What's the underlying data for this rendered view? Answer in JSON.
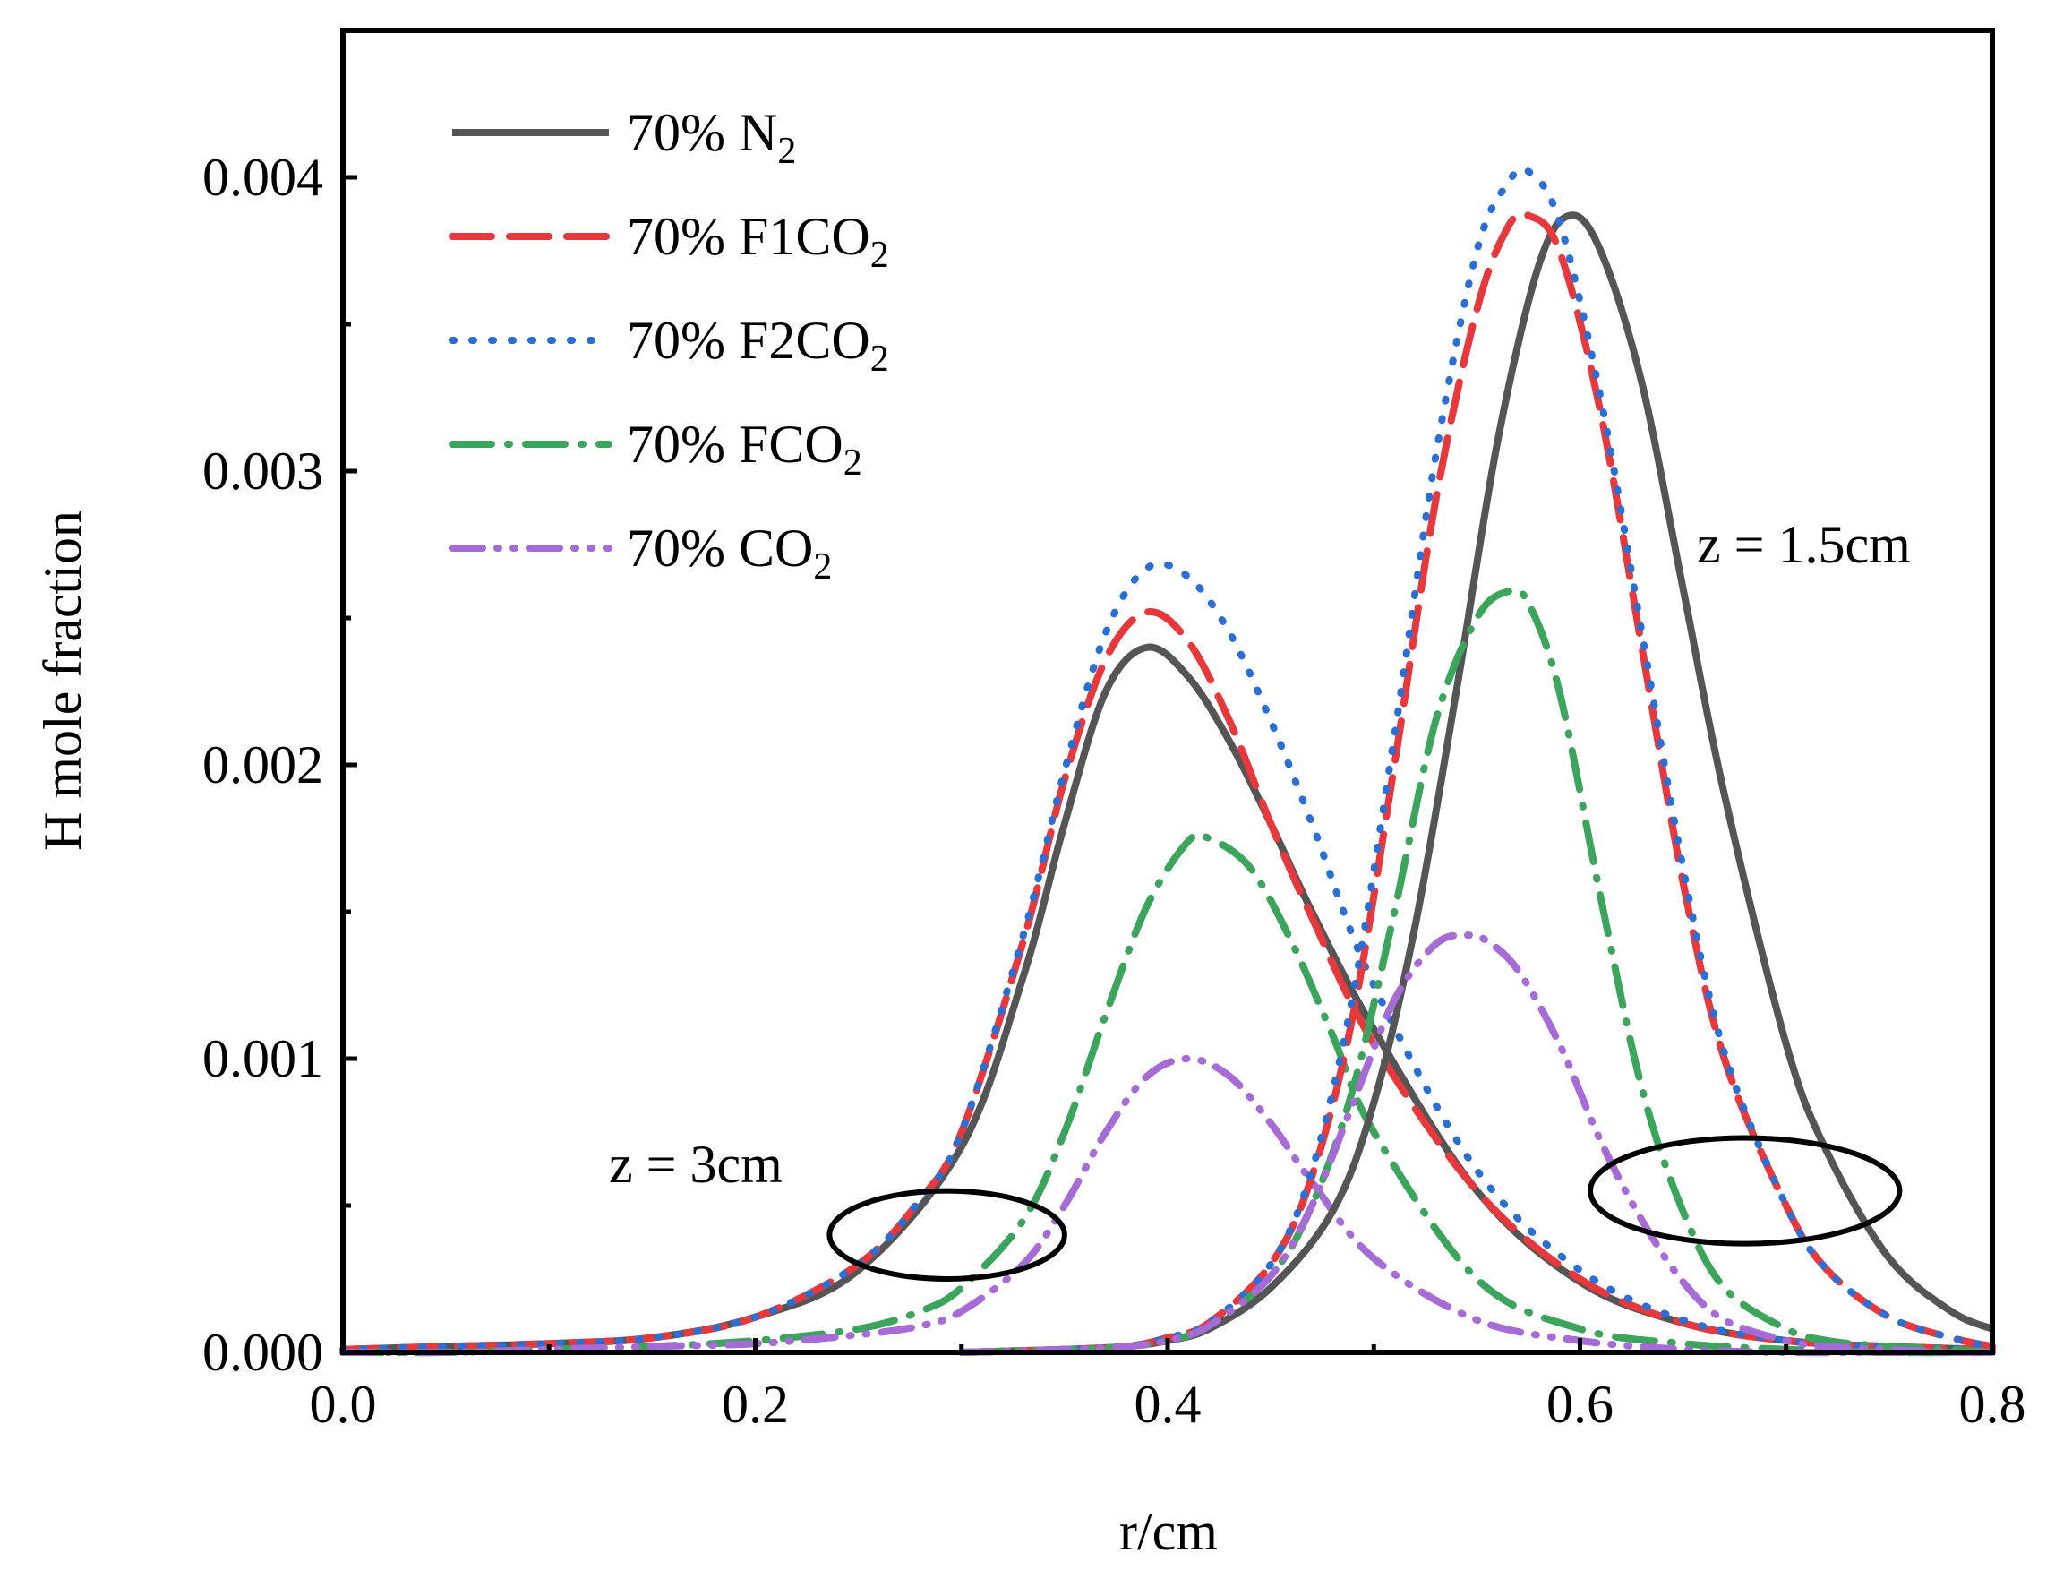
{
  "chart_data": {
    "type": "line",
    "title": "",
    "xlabel": "r/cm",
    "ylabel": "H mole fraction",
    "xlim": [
      0.0,
      0.8
    ],
    "ylim": [
      0.0,
      0.0045
    ],
    "xticks": [
      0.0,
      0.2,
      0.4,
      0.6,
      0.8
    ],
    "xtick_labels": [
      "0.0",
      "0.2",
      "0.4",
      "0.6",
      "0.8"
    ],
    "yticks": [
      0.0,
      0.001,
      0.002,
      0.003,
      0.004
    ],
    "ytick_labels": [
      "0.000",
      "0.001",
      "0.002",
      "0.003",
      "0.004"
    ],
    "grid": false,
    "legend_position": "top-left",
    "annotations": [
      {
        "text": "z = 3cm",
        "x": 0.185,
        "y": 0.00065
      },
      {
        "text": "z = 1.5cm",
        "x": 0.655,
        "y": 0.00275
      }
    ],
    "ellipses": [
      {
        "cx": 0.293,
        "cy": 0.0004,
        "rx": 0.057,
        "ry": 0.00015
      },
      {
        "cx": 0.68,
        "cy": 0.00055,
        "rx": 0.075,
        "ry": 0.00018
      }
    ],
    "series": [
      {
        "name": "70% N2",
        "legend_main": "70% N",
        "legend_sub": "2",
        "color": "#555555",
        "dash": "solid",
        "group": "z = 3cm",
        "x": [
          0.0,
          0.05,
          0.1,
          0.15,
          0.2,
          0.25,
          0.3,
          0.33,
          0.35,
          0.37,
          0.39,
          0.41,
          0.43,
          0.45,
          0.47,
          0.5,
          0.55,
          0.6,
          0.65,
          0.7,
          0.75,
          0.8
        ],
        "y": [
          1e-05,
          2e-05,
          3e-05,
          5e-05,
          0.00012,
          0.00028,
          0.0007,
          0.00128,
          0.0018,
          0.00225,
          0.0024,
          0.0023,
          0.00208,
          0.0018,
          0.0015,
          0.0011,
          0.00055,
          0.00024,
          0.0001,
          4e-05,
          2e-05,
          1e-05
        ]
      },
      {
        "name": "70% F1CO2",
        "legend_main": "70% F1CO",
        "legend_sub": "2",
        "color": "#E8383C",
        "dash": "long-dash",
        "group": "z = 3cm",
        "x": [
          0.0,
          0.05,
          0.1,
          0.15,
          0.2,
          0.25,
          0.28,
          0.3,
          0.33,
          0.35,
          0.37,
          0.39,
          0.41,
          0.43,
          0.45,
          0.47,
          0.5,
          0.55,
          0.6,
          0.65,
          0.7,
          0.75,
          0.8
        ],
        "y": [
          1e-05,
          2e-05,
          3e-05,
          5e-05,
          0.00012,
          0.0003,
          0.00052,
          0.00075,
          0.0014,
          0.00195,
          0.00236,
          0.00252,
          0.00242,
          0.00215,
          0.0018,
          0.00148,
          0.00105,
          0.00055,
          0.00025,
          0.0001,
          4e-05,
          2e-05,
          1e-05
        ]
      },
      {
        "name": "70% F2CO2",
        "legend_main": "70% F2CO",
        "legend_sub": "2",
        "color": "#2A6FD6",
        "dash": "dot",
        "group": "z = 3cm",
        "x": [
          0.0,
          0.05,
          0.1,
          0.15,
          0.2,
          0.25,
          0.28,
          0.3,
          0.33,
          0.35,
          0.37,
          0.39,
          0.41,
          0.43,
          0.45,
          0.47,
          0.5,
          0.55,
          0.6,
          0.65,
          0.7,
          0.75,
          0.8
        ],
        "y": [
          1e-05,
          2e-05,
          3e-05,
          5e-05,
          0.00012,
          0.0003,
          0.00052,
          0.00075,
          0.00142,
          0.00198,
          0.00245,
          0.00267,
          0.00264,
          0.00245,
          0.00215,
          0.0018,
          0.00125,
          0.00062,
          0.00028,
          0.00011,
          4e-05,
          2e-05,
          1e-05
        ]
      },
      {
        "name": "70% FCO2",
        "legend_main": "70% FCO",
        "legend_sub": "2",
        "color": "#3BA55C",
        "dash": "dash-dot",
        "group": "z = 3cm",
        "x": [
          0.0,
          0.05,
          0.1,
          0.15,
          0.2,
          0.25,
          0.28,
          0.3,
          0.33,
          0.35,
          0.37,
          0.39,
          0.41,
          0.42,
          0.44,
          0.46,
          0.48,
          0.5,
          0.55,
          0.6,
          0.65,
          0.7,
          0.75,
          0.8
        ],
        "y": [
          0.0,
          0.0,
          1e-05,
          2e-05,
          4e-05,
          8e-05,
          0.00014,
          0.00022,
          0.00045,
          0.00075,
          0.00115,
          0.00152,
          0.00174,
          0.00175,
          0.00165,
          0.0014,
          0.00108,
          0.00075,
          0.00025,
          8e-05,
          3e-05,
          1e-05,
          0.0,
          0.0
        ]
      },
      {
        "name": "70% CO2",
        "legend_main": "70% CO",
        "legend_sub": "2",
        "color": "#A66BD6",
        "dash": "dash-dot-dot",
        "group": "z = 3cm",
        "x": [
          0.0,
          0.05,
          0.1,
          0.15,
          0.2,
          0.25,
          0.28,
          0.3,
          0.33,
          0.35,
          0.37,
          0.39,
          0.41,
          0.43,
          0.45,
          0.47,
          0.5,
          0.55,
          0.6,
          0.65,
          0.7,
          0.75,
          0.8
        ],
        "y": [
          0.0,
          0.0,
          1e-05,
          2e-05,
          3e-05,
          6e-05,
          9e-05,
          0.00014,
          0.0003,
          0.0005,
          0.00075,
          0.00094,
          0.001,
          0.00094,
          0.00078,
          0.00058,
          0.00032,
          0.00011,
          4e-05,
          1e-05,
          0.0,
          0.0,
          0.0
        ]
      },
      {
        "name": "70% N2 (z = 1.5cm)",
        "color": "#555555",
        "dash": "solid",
        "group": "z = 1.5cm",
        "x": [
          0.3,
          0.35,
          0.38,
          0.4,
          0.42,
          0.45,
          0.48,
          0.5,
          0.52,
          0.54,
          0.56,
          0.58,
          0.595,
          0.61,
          0.63,
          0.65,
          0.67,
          0.7,
          0.72,
          0.75,
          0.78,
          0.8
        ],
        "y": [
          0.0,
          1e-05,
          2e-05,
          4e-05,
          8e-05,
          0.00022,
          0.00048,
          0.00085,
          0.00145,
          0.00225,
          0.0031,
          0.0037,
          0.00387,
          0.00375,
          0.0033,
          0.0026,
          0.0019,
          0.00105,
          0.00068,
          0.00032,
          0.00014,
          8e-05
        ]
      },
      {
        "name": "70% F1CO2 (z = 1.5cm)",
        "color": "#E8383C",
        "dash": "long-dash",
        "group": "z = 1.5cm",
        "x": [
          0.3,
          0.35,
          0.38,
          0.4,
          0.42,
          0.45,
          0.47,
          0.49,
          0.51,
          0.53,
          0.55,
          0.565,
          0.575,
          0.59,
          0.61,
          0.63,
          0.65,
          0.67,
          0.7,
          0.72,
          0.75,
          0.78,
          0.8
        ],
        "y": [
          0.0,
          1e-05,
          2e-05,
          5e-05,
          0.0001,
          0.0003,
          0.0006,
          0.00115,
          0.002,
          0.0029,
          0.00355,
          0.00383,
          0.00387,
          0.00375,
          0.0032,
          0.0024,
          0.0016,
          0.001,
          0.0005,
          0.00028,
          0.00012,
          5e-05,
          2e-05
        ]
      },
      {
        "name": "70% F2CO2 (z = 1.5cm)",
        "color": "#2A6FD6",
        "dash": "dot",
        "group": "z = 1.5cm",
        "x": [
          0.3,
          0.35,
          0.38,
          0.4,
          0.42,
          0.45,
          0.47,
          0.49,
          0.51,
          0.53,
          0.55,
          0.565,
          0.575,
          0.59,
          0.61,
          0.63,
          0.65,
          0.67,
          0.7,
          0.72,
          0.75,
          0.78,
          0.8
        ],
        "y": [
          0.0,
          1e-05,
          2e-05,
          5e-05,
          0.0001,
          0.0003,
          0.00062,
          0.00122,
          0.0021,
          0.00305,
          0.00375,
          0.00398,
          0.00402,
          0.00385,
          0.00325,
          0.00245,
          0.00165,
          0.00102,
          0.0005,
          0.00028,
          0.00012,
          5e-05,
          2e-05
        ]
      },
      {
        "name": "70% FCO2 (z = 1.5cm)",
        "color": "#3BA55C",
        "dash": "dash-dot",
        "group": "z = 1.5cm",
        "x": [
          0.3,
          0.35,
          0.38,
          0.4,
          0.42,
          0.45,
          0.47,
          0.49,
          0.51,
          0.53,
          0.55,
          0.565,
          0.575,
          0.59,
          0.61,
          0.63,
          0.65,
          0.67,
          0.7,
          0.72,
          0.75,
          0.78,
          0.8
        ],
        "y": [
          0.0,
          1e-05,
          2e-05,
          4e-05,
          9e-05,
          0.00026,
          0.0005,
          0.0009,
          0.0015,
          0.00215,
          0.0025,
          0.00259,
          0.00255,
          0.00225,
          0.00155,
          0.0009,
          0.00048,
          0.00022,
          8e-05,
          4e-05,
          2e-05,
          1e-05,
          0.0
        ]
      },
      {
        "name": "70% CO2 (z = 1.5cm)",
        "color": "#A66BD6",
        "dash": "dash-dot-dot",
        "group": "z = 1.5cm",
        "x": [
          0.3,
          0.35,
          0.38,
          0.4,
          0.42,
          0.45,
          0.47,
          0.49,
          0.51,
          0.53,
          0.545,
          0.555,
          0.57,
          0.59,
          0.61,
          0.63,
          0.65,
          0.67,
          0.7,
          0.72,
          0.75,
          0.78,
          0.8
        ],
        "y": [
          0.0,
          1e-05,
          2e-05,
          4e-05,
          9e-05,
          0.00026,
          0.0005,
          0.00085,
          0.0012,
          0.00139,
          0.00142,
          0.0014,
          0.0013,
          0.00105,
          0.00072,
          0.00045,
          0.00024,
          0.00011,
          4e-05,
          2e-05,
          1e-05,
          0.0,
          0.0
        ]
      }
    ]
  }
}
